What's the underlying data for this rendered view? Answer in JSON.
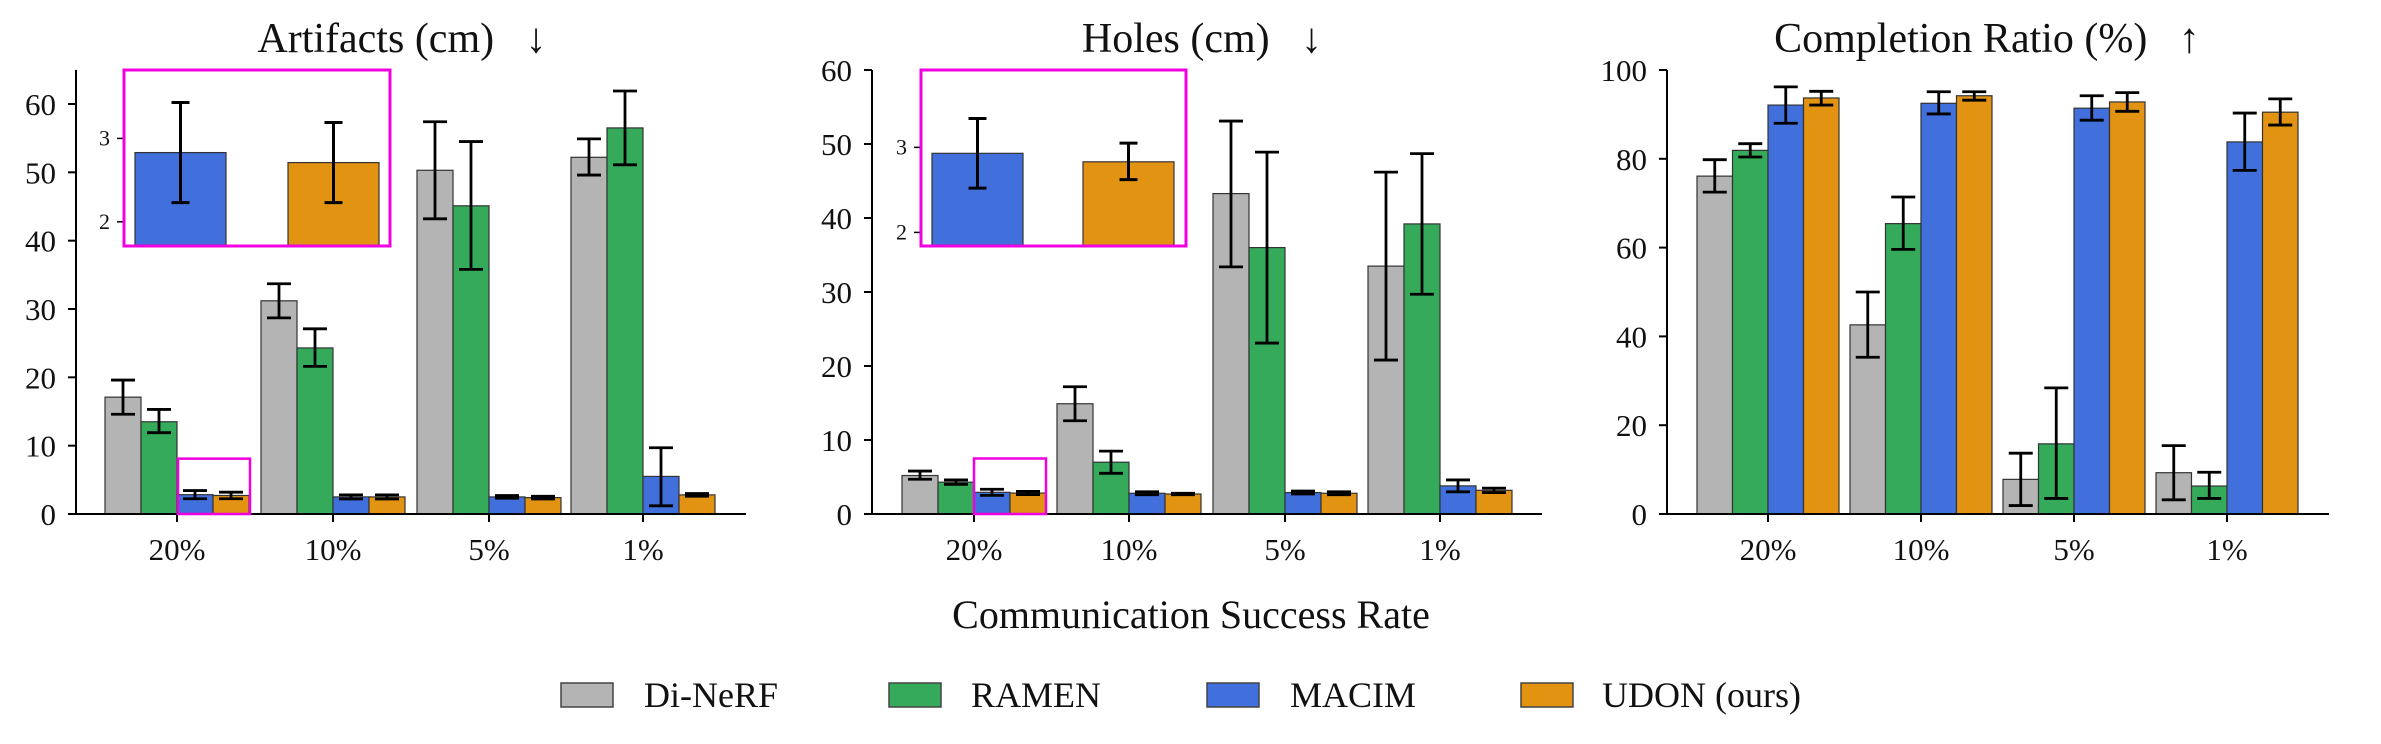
{
  "xlabel": "Communication Success Rate",
  "legend": [
    {
      "name": "Di-NeRF",
      "color": "#b4b4b4"
    },
    {
      "name": "RAMEN",
      "color": "#34aa5a"
    },
    {
      "name": "MACIM",
      "color": "#4170dd"
    },
    {
      "name": "UDON (ours)",
      "color": "#e39312"
    }
  ],
  "highlight_color": "#f000e0",
  "chart_data": [
    {
      "type": "bar",
      "title": "Artifacts (cm)",
      "arrow": "↓",
      "categories": [
        "20%",
        "10%",
        "5%",
        "1%"
      ],
      "ylim": [
        0,
        65
      ],
      "yticks": [
        0,
        10,
        20,
        30,
        40,
        50,
        60
      ],
      "series": [
        {
          "name": "Di-NeRF",
          "values": [
            17.1,
            31.2,
            50.3,
            52.2
          ],
          "err_low": [
            14.6,
            28.7,
            43.2,
            49.6
          ],
          "err_high": [
            19.6,
            33.7,
            57.4,
            54.9
          ]
        },
        {
          "name": "RAMEN",
          "values": [
            13.5,
            24.3,
            45.1,
            56.5
          ],
          "err_low": [
            11.9,
            21.6,
            35.8,
            51.1
          ],
          "err_high": [
            15.3,
            27.1,
            54.5,
            61.9
          ]
        },
        {
          "name": "MACIM",
          "values": [
            2.83,
            2.5,
            2.5,
            5.5
          ],
          "err_low": [
            2.23,
            2.2,
            2.3,
            1.2
          ],
          "err_high": [
            3.43,
            2.8,
            2.7,
            9.7
          ]
        },
        {
          "name": "UDON (ours)",
          "values": [
            2.71,
            2.5,
            2.4,
            2.8
          ],
          "err_low": [
            2.23,
            2.2,
            2.2,
            2.6
          ],
          "err_high": [
            3.19,
            2.8,
            2.6,
            3.0
          ]
        }
      ],
      "inset": {
        "category": "20%",
        "series": [
          "MACIM",
          "UDON (ours)"
        ],
        "ylim": [
          1.71,
          3.82
        ],
        "yticks": [
          2,
          3
        ],
        "highlight_ylim": [
          0,
          8.1
        ]
      }
    },
    {
      "type": "bar",
      "title": "Holes (cm)",
      "arrow": "↓",
      "categories": [
        "20%",
        "10%",
        "5%",
        "1%"
      ],
      "ylim": [
        0,
        60
      ],
      "yticks": [
        0,
        10,
        20,
        30,
        40,
        50,
        60
      ],
      "series": [
        {
          "name": "Di-NeRF",
          "values": [
            5.2,
            14.9,
            43.3,
            33.5
          ],
          "err_low": [
            4.7,
            12.6,
            33.4,
            20.8
          ],
          "err_high": [
            5.8,
            17.2,
            53.1,
            46.2
          ]
        },
        {
          "name": "RAMEN",
          "values": [
            4.3,
            7.0,
            36.0,
            39.2
          ],
          "err_low": [
            4.0,
            5.5,
            23.1,
            29.7
          ],
          "err_high": [
            4.6,
            8.5,
            48.9,
            48.7
          ]
        },
        {
          "name": "MACIM",
          "values": [
            2.93,
            2.8,
            2.9,
            3.8
          ],
          "err_low": [
            2.52,
            2.6,
            2.7,
            3.0
          ],
          "err_high": [
            3.34,
            3.0,
            3.1,
            4.6
          ]
        },
        {
          "name": "UDON (ours)",
          "values": [
            2.83,
            2.7,
            2.8,
            3.2
          ],
          "err_low": [
            2.62,
            2.6,
            2.6,
            2.9
          ],
          "err_high": [
            3.05,
            2.8,
            3.0,
            3.5
          ]
        }
      ],
      "inset": {
        "category": "20%",
        "series": [
          "MACIM",
          "UDON (ours)"
        ],
        "ylim": [
          1.84,
          3.91
        ],
        "yticks": [
          2,
          3
        ],
        "highlight_ylim": [
          0,
          7.5
        ]
      }
    },
    {
      "type": "bar",
      "title": "Completion Ratio (%)",
      "arrow": "↑",
      "categories": [
        "20%",
        "10%",
        "5%",
        "1%"
      ],
      "ylim": [
        0,
        100
      ],
      "yticks": [
        0,
        20,
        40,
        60,
        80,
        100
      ],
      "series": [
        {
          "name": "Di-NeRF",
          "values": [
            76.1,
            42.6,
            7.8,
            9.3
          ],
          "err_low": [
            72.5,
            35.3,
            1.9,
            3.2
          ],
          "err_high": [
            79.8,
            50.0,
            13.7,
            15.4
          ]
        },
        {
          "name": "RAMEN",
          "values": [
            81.9,
            65.4,
            15.8,
            6.3
          ],
          "err_low": [
            80.4,
            59.6,
            3.5,
            3.5
          ],
          "err_high": [
            83.4,
            71.4,
            28.4,
            9.4
          ]
        },
        {
          "name": "MACIM",
          "values": [
            92.1,
            92.5,
            91.4,
            83.8
          ],
          "err_low": [
            88.0,
            90.1,
            88.7,
            77.4
          ],
          "err_high": [
            96.2,
            95.1,
            94.2,
            90.3
          ]
        },
        {
          "name": "UDON (ours)",
          "values": [
            93.7,
            94.2,
            92.8,
            90.5
          ],
          "err_low": [
            92.1,
            93.2,
            90.7,
            87.6
          ],
          "err_high": [
            95.2,
            95.1,
            94.9,
            93.5
          ]
        }
      ]
    }
  ]
}
